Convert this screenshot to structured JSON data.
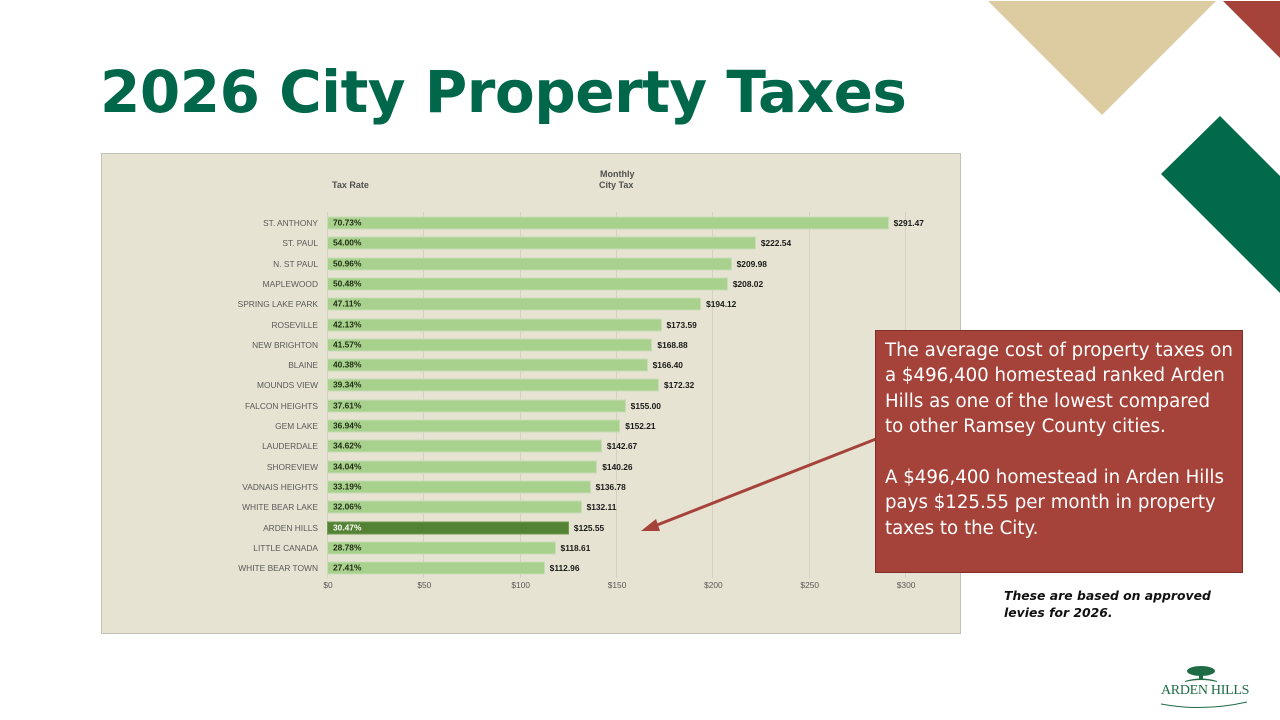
{
  "slide": {
    "title": "2026 City Property Taxes",
    "colors": {
      "title_green": "#00674a",
      "tan_triangle": "#ddcba1",
      "red_accent": "#a5433a",
      "green_accent": "#016a4b",
      "chart_background": "#e7e3d2",
      "bar_default": "#a9d18e",
      "bar_highlight": "#548235"
    }
  },
  "chart": {
    "header_rate": "Tax Rate",
    "header_monthly_line1": "Monthly",
    "header_monthly_line2": "City Tax",
    "ticks": [
      "$0",
      "$50",
      "$100",
      "$150",
      "$200",
      "$250",
      "$300"
    ],
    "rows": [
      {
        "city": "ST. ANTHONY",
        "rate": "70.73%",
        "monthly": "$291.47",
        "value": 291.47,
        "highlight": false
      },
      {
        "city": "ST. PAUL",
        "rate": "54.00%",
        "monthly": "$222.54",
        "value": 222.54,
        "highlight": false
      },
      {
        "city": "N. ST PAUL",
        "rate": "50.96%",
        "monthly": "$209.98",
        "value": 209.98,
        "highlight": false
      },
      {
        "city": "MAPLEWOOD",
        "rate": "50.48%",
        "monthly": "$208.02",
        "value": 208.02,
        "highlight": false
      },
      {
        "city": "SPRING LAKE PARK",
        "rate": "47.11%",
        "monthly": "$194.12",
        "value": 194.12,
        "highlight": false
      },
      {
        "city": "ROSEVILLE",
        "rate": "42.13%",
        "monthly": "$173.59",
        "value": 173.59,
        "highlight": false
      },
      {
        "city": "NEW BRIGHTON",
        "rate": "41.57%",
        "monthly": "$168.88",
        "value": 168.88,
        "highlight": false
      },
      {
        "city": "BLAINE",
        "rate": "40.38%",
        "monthly": "$166.40",
        "value": 166.4,
        "highlight": false
      },
      {
        "city": "MOUNDS VIEW",
        "rate": "39.34%",
        "monthly": "$172.32",
        "value": 172.32,
        "highlight": false
      },
      {
        "city": "FALCON HEIGHTS",
        "rate": "37.61%",
        "monthly": "$155.00",
        "value": 155.0,
        "highlight": false
      },
      {
        "city": "GEM LAKE",
        "rate": "36.94%",
        "monthly": "$152.21",
        "value": 152.21,
        "highlight": false
      },
      {
        "city": "LAUDERDALE",
        "rate": "34.62%",
        "monthly": "$142.67",
        "value": 142.67,
        "highlight": false
      },
      {
        "city": "SHOREVIEW",
        "rate": "34.04%",
        "monthly": "$140.26",
        "value": 140.26,
        "highlight": false
      },
      {
        "city": "VADNAIS HEIGHTS",
        "rate": "33.19%",
        "monthly": "$136.78",
        "value": 136.78,
        "highlight": false
      },
      {
        "city": "WHITE BEAR LAKE",
        "rate": "32.06%",
        "monthly": "$132.11",
        "value": 132.11,
        "highlight": false
      },
      {
        "city": "ARDEN HILLS",
        "rate": "30.47%",
        "monthly": "$125.55",
        "value": 125.55,
        "highlight": true
      },
      {
        "city": "LITTLE CANADA",
        "rate": "28.78%",
        "monthly": "$118.61",
        "value": 118.61,
        "highlight": false
      },
      {
        "city": "WHITE BEAR TOWN",
        "rate": "27.41%",
        "monthly": "$112.96",
        "value": 112.96,
        "highlight": false
      }
    ]
  },
  "chart_data": {
    "type": "bar",
    "orientation": "horizontal",
    "title": "2026 City Property Taxes",
    "xlabel": "Monthly City Tax",
    "ylabel": "",
    "xlim": [
      0,
      300
    ],
    "x_ticks": [
      "$0",
      "$50",
      "$100",
      "$150",
      "$200",
      "$250",
      "$300"
    ],
    "grid": "vertical",
    "legend": "none",
    "categories": [
      "ST. ANTHONY",
      "ST. PAUL",
      "N. ST PAUL",
      "MAPLEWOOD",
      "SPRING LAKE PARK",
      "ROSEVILLE",
      "NEW BRIGHTON",
      "BLAINE",
      "MOUNDS VIEW",
      "FALCON HEIGHTS",
      "GEM LAKE",
      "LAUDERDALE",
      "SHOREVIEW",
      "VADNAIS HEIGHTS",
      "WHITE BEAR LAKE",
      "ARDEN HILLS",
      "LITTLE CANADA",
      "WHITE BEAR TOWN"
    ],
    "series": [
      {
        "name": "Monthly City Tax ($)",
        "values": [
          291.47,
          222.54,
          209.98,
          208.02,
          194.12,
          173.59,
          168.88,
          166.4,
          172.32,
          155.0,
          152.21,
          142.67,
          140.26,
          136.78,
          132.11,
          125.55,
          118.61,
          112.96
        ]
      },
      {
        "name": "Tax Rate (%)",
        "values": [
          70.73,
          54.0,
          50.96,
          50.48,
          47.11,
          42.13,
          41.57,
          40.38,
          39.34,
          37.61,
          36.94,
          34.62,
          34.04,
          33.19,
          32.06,
          30.47,
          28.78,
          27.41
        ]
      }
    ],
    "highlighted_category": "ARDEN HILLS",
    "annotations": [
      "Arrow from callout pointing to ARDEN HILLS bar ($125.55)"
    ]
  },
  "callout": {
    "paragraph1": "The average cost of property taxes on a $496,400 homestead ranked Arden Hills as one of the lowest compared to other Ramsey County cities.",
    "paragraph2": "A $496,400 homestead in Arden Hills pays $125.55 per month in property taxes to the City."
  },
  "footnote": "These are based on approved levies for 2026.",
  "logo": {
    "text": "ARDEN HILLS",
    "icon": "tree-icon"
  }
}
